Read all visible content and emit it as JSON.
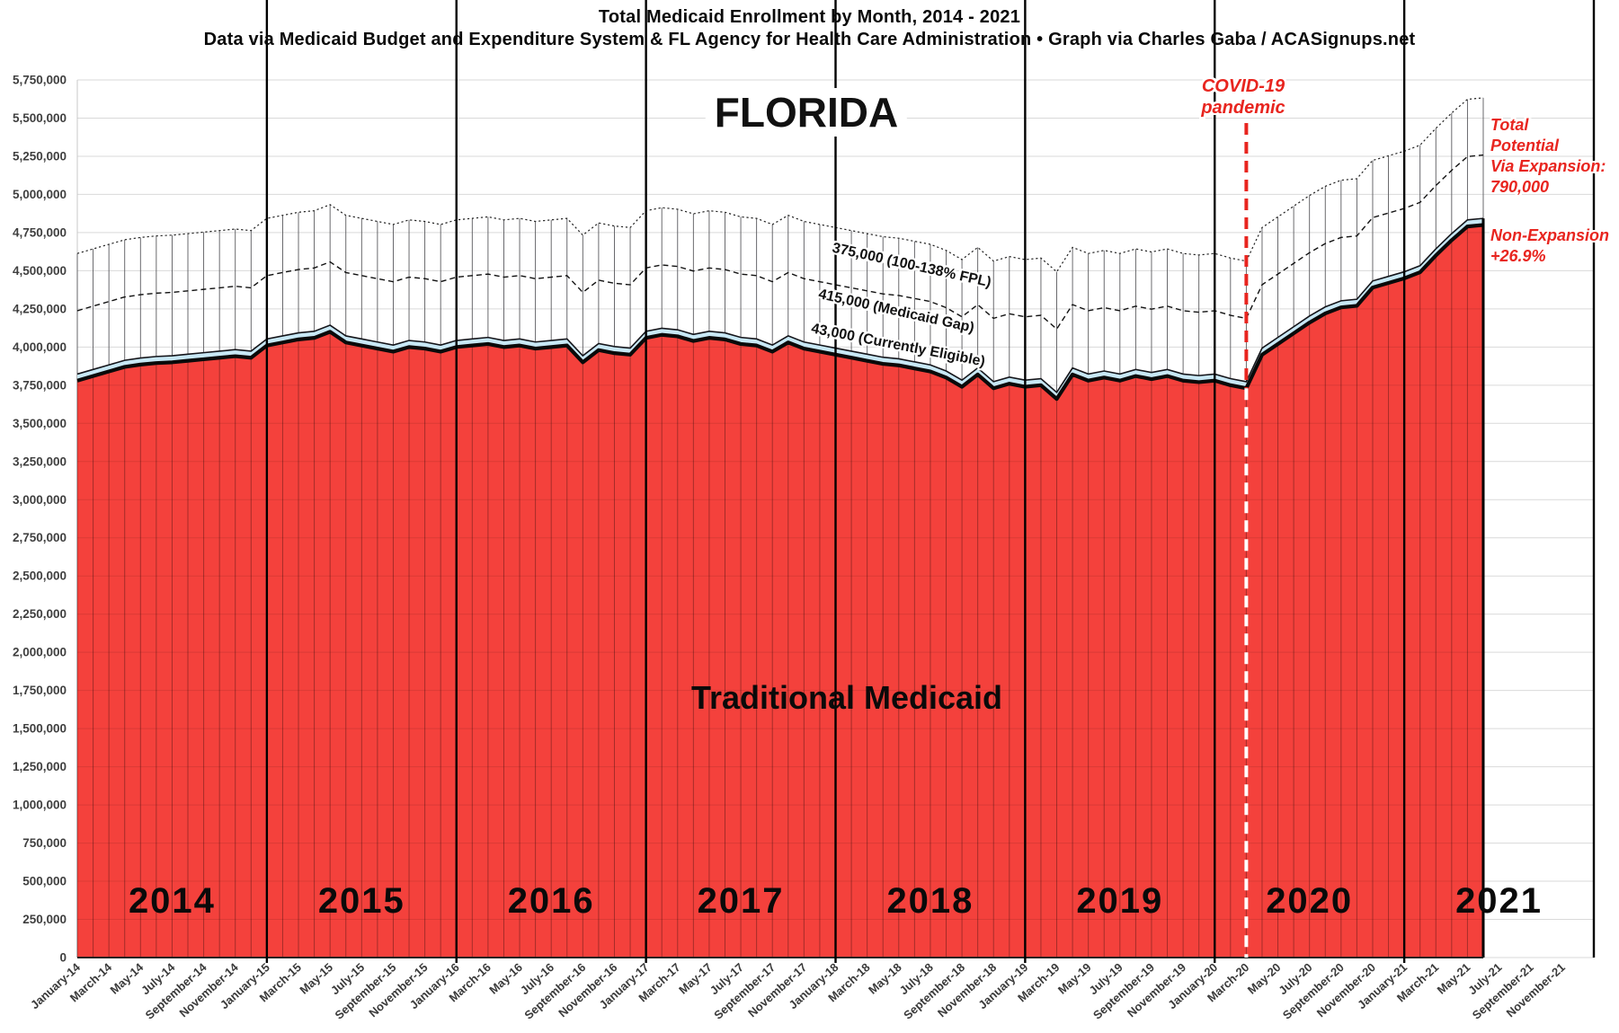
{
  "header": {
    "title": "Total Medicaid Enrollment by Month, 2014 - 2021",
    "subtitle": "Data via Medicaid Budget and Expenditure System & FL Agency for Health Care Administration  •  Graph via Charles Gaba / ACASignups.net"
  },
  "annotations": {
    "state": "FLORIDA",
    "area_label": "Traditional Medicaid",
    "covid": {
      "line1": "COVID-19",
      "line2": "pandemic"
    },
    "potential": {
      "line1": "Total",
      "line2": "Potential",
      "line3": "Via Expansion:",
      "line4": "790,000"
    },
    "non_expansion": {
      "line1": "Non-Expansion",
      "line2": "+26.9%"
    },
    "band_fpl": "375,000 (100-138% FPL)",
    "band_gap": "415,000 (Medicaid Gap)",
    "band_eligible": "43,000 (Currently Eligible)"
  },
  "chart_data": {
    "type": "area",
    "title": "Total Medicaid Enrollment by Month, 2014 - 2021",
    "ylabel": "",
    "xlabel": "",
    "ylim": [
      0,
      5750000
    ],
    "grid": true,
    "legend_position": "none",
    "y_tick_labels": [
      "0",
      "250,000",
      "500,000",
      "750,000",
      "1,000,000",
      "1,250,000",
      "1,500,000",
      "1,750,000",
      "2,000,000",
      "2,250,000",
      "2,500,000",
      "2,750,000",
      "3,000,000",
      "3,250,000",
      "3,500,000",
      "3,750,000",
      "4,000,000",
      "4,250,000",
      "4,500,000",
      "4,750,000",
      "5,000,000",
      "5,250,000",
      "5,500,000",
      "5,750,000"
    ],
    "x_tick_labels": [
      "January-14",
      "March-14",
      "May-14",
      "July-14",
      "September-14",
      "November-14",
      "January-15",
      "March-15",
      "May-15",
      "July-15",
      "September-15",
      "November-15",
      "January-16",
      "March-16",
      "May-16",
      "July-16",
      "September-16",
      "November-16",
      "January-17",
      "March-17",
      "May-17",
      "July-17",
      "September-17",
      "November-17",
      "January-18",
      "March-18",
      "May-18",
      "July-18",
      "September-18",
      "November-18",
      "January-19",
      "March-19",
      "May-19",
      "July-19",
      "September-19",
      "November-19",
      "January-20",
      "March-20",
      "May-20",
      "July-20",
      "September-20",
      "November-20",
      "January-21",
      "March-21",
      "May-21",
      "July-21",
      "September-21",
      "November-21"
    ],
    "x_axis_month_slots": 96,
    "years": [
      "2014",
      "2015",
      "2016",
      "2017",
      "2018",
      "2019",
      "2020",
      "2021"
    ],
    "series": [
      {
        "name": "Traditional Medicaid",
        "color": "#F4413C",
        "start_month": "January-14",
        "end_month": "June-21",
        "values_monthly": [
          3780000,
          3810000,
          3840000,
          3870000,
          3885000,
          3895000,
          3900000,
          3910000,
          3920000,
          3930000,
          3940000,
          3930000,
          4010000,
          4030000,
          4050000,
          4060000,
          4100000,
          4030000,
          4010000,
          3990000,
          3970000,
          4000000,
          3990000,
          3970000,
          4000000,
          4010000,
          4020000,
          4000000,
          4010000,
          3990000,
          4000000,
          4010000,
          3900000,
          3980000,
          3960000,
          3950000,
          4060000,
          4080000,
          4070000,
          4040000,
          4060000,
          4050000,
          4020000,
          4010000,
          3970000,
          4030000,
          3990000,
          3970000,
          3950000,
          3930000,
          3910000,
          3890000,
          3880000,
          3860000,
          3840000,
          3800000,
          3740000,
          3820000,
          3730000,
          3760000,
          3740000,
          3750000,
          3660000,
          3820000,
          3780000,
          3800000,
          3780000,
          3810000,
          3790000,
          3810000,
          3780000,
          3770000,
          3780000,
          3750000,
          3730000,
          3950000,
          4020000,
          4090000,
          4160000,
          4220000,
          4260000,
          4270000,
          4390000,
          4420000,
          4450000,
          4490000,
          4600000,
          4700000,
          4790000,
          4800000
        ]
      },
      {
        "name": "Currently Eligible",
        "band_height": 43000,
        "color": "#C8E8F5",
        "boundary_style": "solid"
      },
      {
        "name": "Medicaid Gap",
        "band_height": 415000,
        "color": "#FFFFFF",
        "boundary_style": "dashed"
      },
      {
        "name": "100-138% FPL",
        "band_height": 375000,
        "color": "#FFFFFF",
        "boundary_style": "dotted"
      }
    ],
    "covid_line": {
      "label": "COVID-19 pandemic",
      "at_month": "March-20",
      "month_index": 74,
      "color": "#E8251F"
    }
  }
}
